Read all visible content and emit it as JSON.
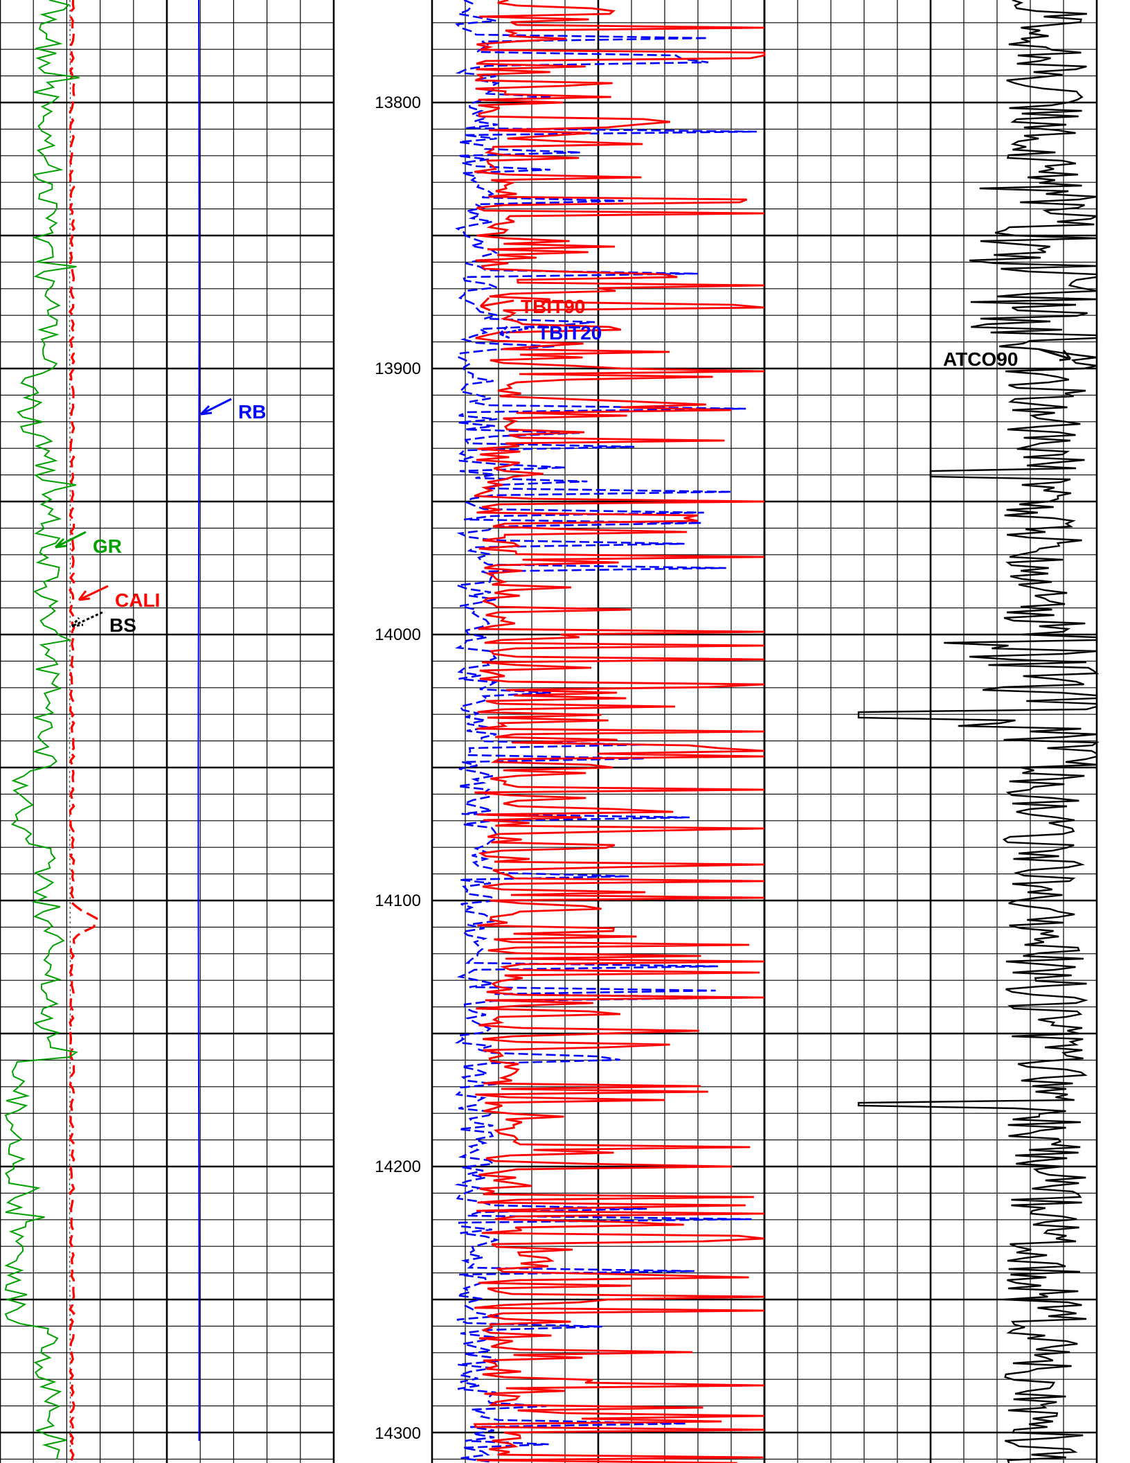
{
  "chart_data": {
    "type": "line",
    "title": "",
    "depth_axis": {
      "ticks": [
        13800,
        13900,
        14000,
        14100,
        14200,
        14300
      ],
      "tick_labels": [
        "13800",
        "13900",
        "14000",
        "14100",
        "14200",
        "14300"
      ],
      "range": [
        13762,
        14311
      ]
    },
    "grid": true,
    "tracks": [
      {
        "name": "track-1",
        "series": [
          {
            "name": "GR",
            "label": "GR",
            "color": "#00a000",
            "style": "solid"
          },
          {
            "name": "CALI",
            "label": "CALI",
            "color": "#ff0000",
            "style": "dashed"
          },
          {
            "name": "BS",
            "label": "BS",
            "color": "#000000",
            "style": "dotted"
          },
          {
            "name": "RB",
            "label": "RB",
            "color": "#0000ff",
            "style": "solid"
          }
        ]
      },
      {
        "name": "track-2",
        "series": [
          {
            "name": "TBIT90",
            "label": "TBIT90",
            "color": "#ff0000",
            "style": "solid"
          },
          {
            "name": "TBIT20",
            "label": "TBIT20",
            "color": "#0000ff",
            "style": "dashed"
          }
        ]
      },
      {
        "name": "track-3",
        "series": [
          {
            "name": "ATCO90",
            "label": "ATCO90",
            "color": "#000000",
            "style": "solid"
          }
        ]
      }
    ]
  }
}
